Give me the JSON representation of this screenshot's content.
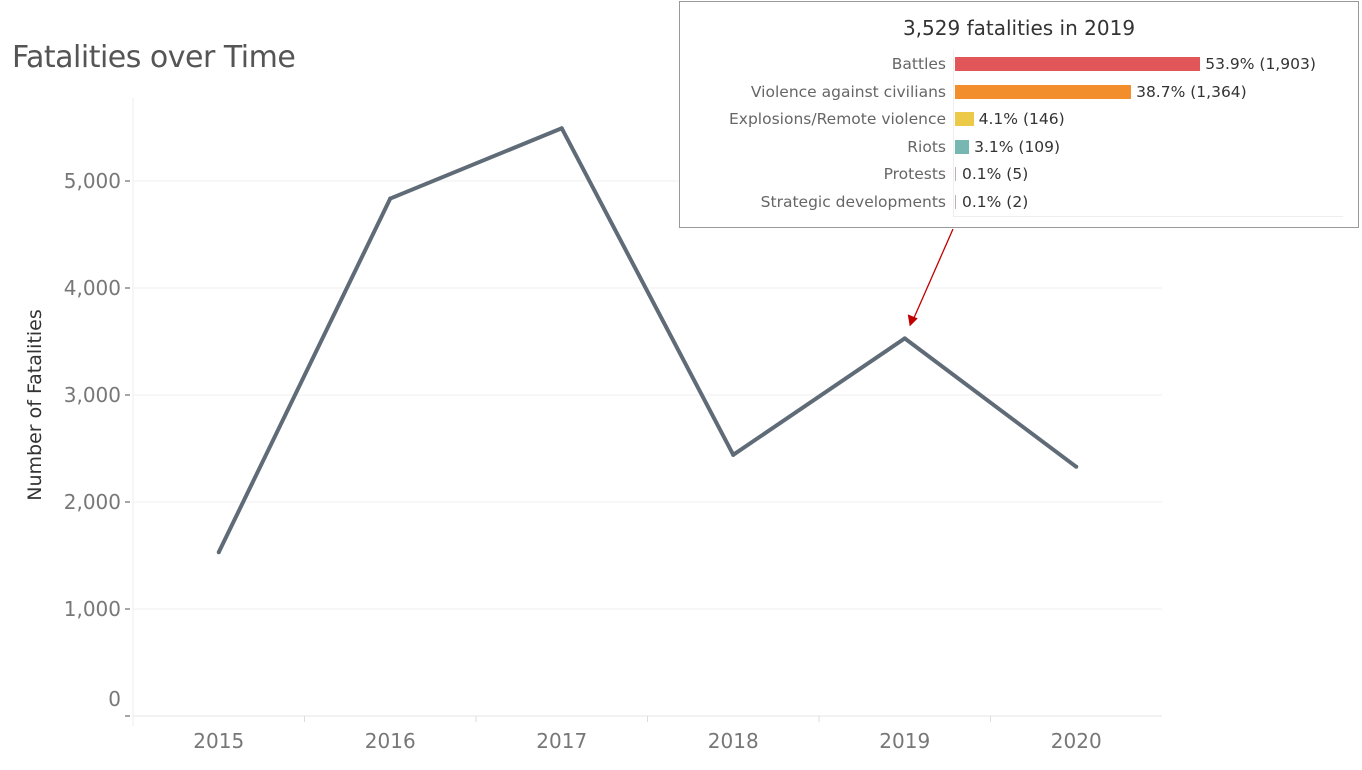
{
  "chart_data": {
    "type": "line",
    "title": "Fatalities over Time",
    "xlabel": "",
    "ylabel": "Number of Fatalities",
    "categories": [
      "2015",
      "2016",
      "2017",
      "2018",
      "2019",
      "2020"
    ],
    "series": [
      {
        "name": "Fatalities",
        "values": [
          1530,
          4836,
          5493,
          2441,
          3529,
          2329
        ],
        "color": "#5f6b76"
      }
    ],
    "ylim": [
      0,
      5800
    ],
    "yticks": [
      0,
      1000,
      2000,
      3000,
      4000,
      5000
    ],
    "ytick_labels": [
      "0",
      "1,000",
      "2,000",
      "3,000",
      "4,000",
      "5,000"
    ],
    "grid": true,
    "tooltip": {
      "title": "3,529 fatalities in 2019",
      "category": "2019",
      "rows": [
        {
          "label": "Battles",
          "pct": 53.9,
          "text": "53.9% (1,903)",
          "color": "#e15759"
        },
        {
          "label": "Violence against civilians",
          "pct": 38.7,
          "text": "38.7% (1,364)",
          "color": "#f28e2b"
        },
        {
          "label": "Explosions/Remote violence",
          "pct": 4.1,
          "text": "4.1% (146)",
          "color": "#edc948"
        },
        {
          "label": "Riots",
          "pct": 3.1,
          "text": "3.1% (109)",
          "color": "#76b7b2"
        },
        {
          "label": "Protests",
          "pct": 0.1,
          "text": "0.1% (5)",
          "color": "#bab0ac"
        },
        {
          "label": "Strategic developments",
          "pct": 0.1,
          "text": "0.1% (2)",
          "color": "#bab0ac"
        }
      ]
    }
  }
}
